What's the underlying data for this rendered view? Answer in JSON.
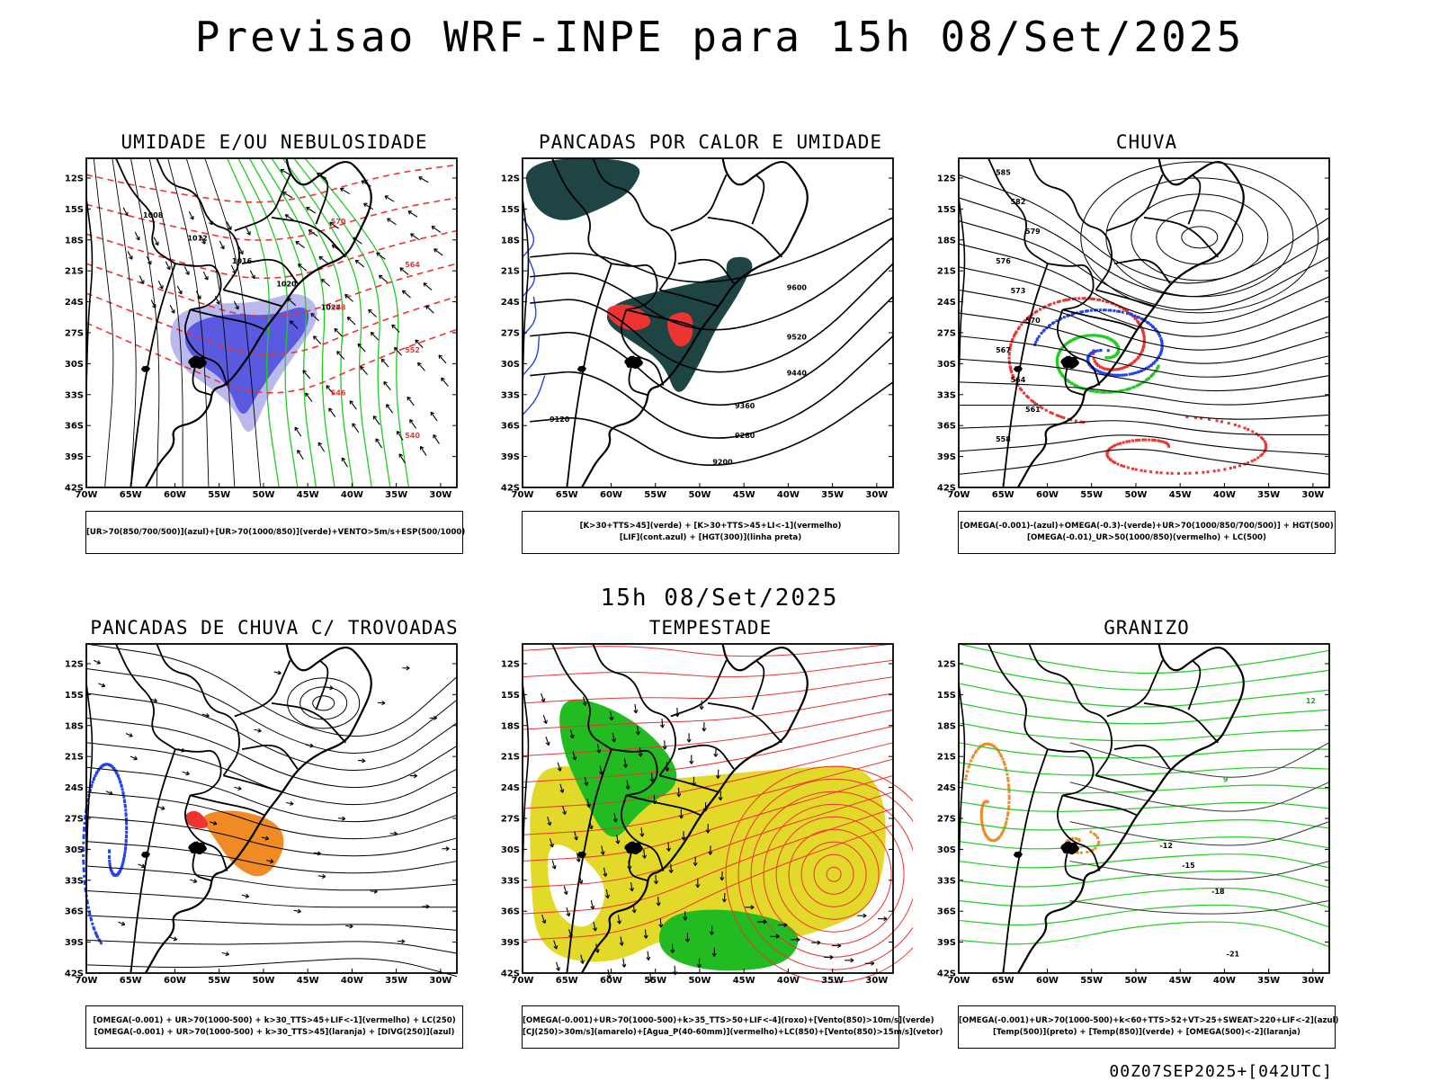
{
  "header": {
    "title": "Previsao WRF-INPE  para 15h 08/Set/2025"
  },
  "middle_label": "15h 08/Set/2025",
  "footer": "00Z07SEP2025+[042UTC]",
  "axes": {
    "lat_labels": [
      "12S",
      "15S",
      "18S",
      "21S",
      "24S",
      "27S",
      "30S",
      "33S",
      "36S",
      "39S",
      "42S"
    ],
    "lon_labels": [
      "70W",
      "65W",
      "60W",
      "55W",
      "50W",
      "45W",
      "40W",
      "35W",
      "30W"
    ]
  },
  "panels": [
    {
      "title": "UMIDADE E/OU NEBULOSIDADE",
      "legend": [
        "[UR>70(850/700/500)](azul)+[UR>70(1000/850)](verde)+VENTO>5m/s+ESP(500/1000)"
      ],
      "contour_labels": [
        "1008",
        "1012",
        "1016",
        "1020",
        "1024",
        "570",
        "564",
        "558",
        "552",
        "546",
        "540"
      ]
    },
    {
      "title": "PANCADAS POR CALOR E UMIDADE",
      "legend": [
        "[K>30+TTS>45](verde) + [K>30+TTS>45+LI<-1](vermelho)",
        "[LIF](cont.azul) + [HGT(300)](linha preta)"
      ],
      "contour_labels": [
        "9600",
        "9520",
        "9440",
        "9360",
        "9280",
        "9200",
        "9120"
      ]
    },
    {
      "title": "CHUVA",
      "legend": [
        "[OMEGA(-0.001)-(azul)+OMEGA(-0.3)-(verde)+UR>70(1000/850/700/500)] + HGT(500)",
        "[OMEGA(-0.01)_UR>50(1000/850)(vermelho) + LC(500)"
      ],
      "contour_labels": [
        "585",
        "582",
        "579",
        "576",
        "573",
        "570",
        "567",
        "564",
        "561",
        "558"
      ]
    },
    {
      "title": "PANCADAS DE CHUVA C/ TROVOADAS",
      "legend": [
        "[OMEGA(-0.001) + UR>70(1000-500) + k>30_TTS>45+LIF<-1](vermelho) + LC(250)",
        "[OMEGA(-0.001) + UR>70(1000-500) + k>30_TTS>45](laranja) + [DIVG(250)](azul)"
      ],
      "contour_labels": []
    },
    {
      "title": "TEMPESTADE",
      "legend": [
        "[OMEGA(-0.001)+UR>70(1000-500)+k>35_TTS>50+LIF<-4](roxo)+[Vento(850)>10m/s](verde)",
        "[CJ(250)>30m/s](amarelo)+[Agua_P(40-60mm)](vermelho)+LC(850)+[Vento(850)>15m/s](vetor)"
      ],
      "contour_labels": []
    },
    {
      "title": "GRANIZO",
      "legend": [
        "[OMEGA(-0.001)+UR>70(1000-500)+k<60+TTS>52+VT>25+SWEAT>220+LIF<-2](azul)",
        "[Temp(500)](preto) + [Temp(850)](verde) + [OMEGA(500)<-2](laranja)"
      ],
      "contour_labels": [
        "12",
        "9",
        "-12",
        "-15",
        "-18",
        "-21"
      ]
    }
  ],
  "colors": {
    "humid_low": "#22cc22",
    "humid_high": "#4444dd",
    "red": "#ee3333",
    "dark_teal": "#1f4444",
    "orange": "#f08a24",
    "yellow": "#e2d92a",
    "green_fill": "#22bb22",
    "blue": "#2244ee"
  }
}
